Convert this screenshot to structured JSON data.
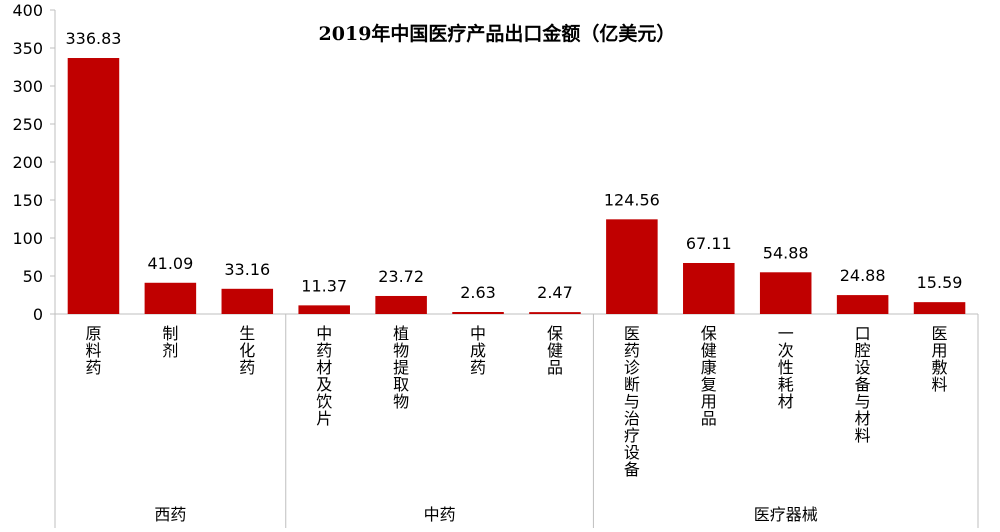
{
  "chart_data": {
    "type": "bar",
    "title": "2019年中国医疗产品出口金额（亿美元）",
    "xlabel": "",
    "ylabel": "",
    "ylim": [
      0,
      400
    ],
    "yticks": [
      0,
      50,
      100,
      150,
      200,
      250,
      300,
      350,
      400
    ],
    "grid": false,
    "legend": "none",
    "bar_color": "#c00000",
    "categories": [
      "原料药",
      "制剂",
      "生化药",
      "中药材及饮片",
      "植物提取物",
      "中成药",
      "保健品",
      "医药诊断与治疗设备",
      "保健康复用品",
      "一次性耗材",
      "口腔设备与材料",
      "医用敷料"
    ],
    "values": [
      336.83,
      41.09,
      33.16,
      11.37,
      23.72,
      2.63,
      2.47,
      124.56,
      67.11,
      54.88,
      24.88,
      15.59
    ],
    "value_labels": [
      "336.83",
      "41.09",
      "33.16",
      "11.37",
      "23.72",
      "2.63",
      "2.47",
      "124.56",
      "67.11",
      "54.88",
      "24.88",
      "15.59"
    ],
    "groups": [
      {
        "name": "西药",
        "size": 3
      },
      {
        "name": "中药",
        "size": 4
      },
      {
        "name": "医疗器械",
        "size": 5
      }
    ]
  }
}
